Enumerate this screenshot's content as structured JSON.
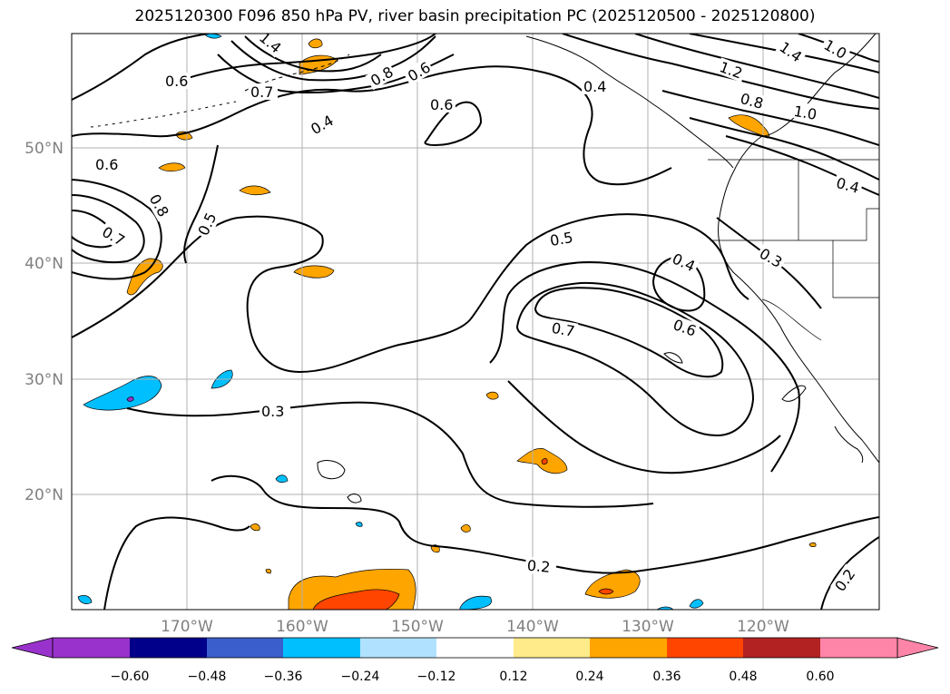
{
  "title": "2025120300 F096 850 hPa PV, river basin precipitation PC (2025120500 - 2025120800)",
  "latitude_labels": [
    "50°N",
    "40°N",
    "30°N",
    "20°N"
  ],
  "longitude_labels": [
    "170°W",
    "160°W",
    "150°W",
    "140°W",
    "130°W",
    "120°W"
  ],
  "contour_labels": [
    "1.4",
    "0.6",
    "0.8",
    "0.6",
    "0.7",
    "0.4",
    "0.6",
    "0.4",
    "1.4",
    "1.0",
    "1.2",
    "0.8",
    "1.0",
    "0.4",
    "0.6",
    "0.8",
    "0.7",
    "0.5",
    "0.5",
    "0.4",
    "0.3",
    "0.6",
    "0.7",
    "0.3",
    "0.2",
    "0.2"
  ],
  "colorbar": {
    "ticks": [
      "−0.60",
      "−0.48",
      "−0.36",
      "−0.24",
      "−0.12",
      "0.12",
      "0.24",
      "0.36",
      "0.48",
      "0.60"
    ],
    "under_color": "#9932CC",
    "over_color": "#FF85A8",
    "colors": [
      "#00008B",
      "#3A5FCD",
      "#00BFFF",
      "#B0E2FF",
      "#FFFFFF",
      "#FFEB8A",
      "#FFA500",
      "#FF4500",
      "#B22222",
      "#FF85A8"
    ]
  },
  "shading_colors": {
    "positive_weak": "#FFA500",
    "positive_strong": "#FF4500",
    "negative_weak": "#00BFFF",
    "negative_strong": "#9932CC"
  }
}
